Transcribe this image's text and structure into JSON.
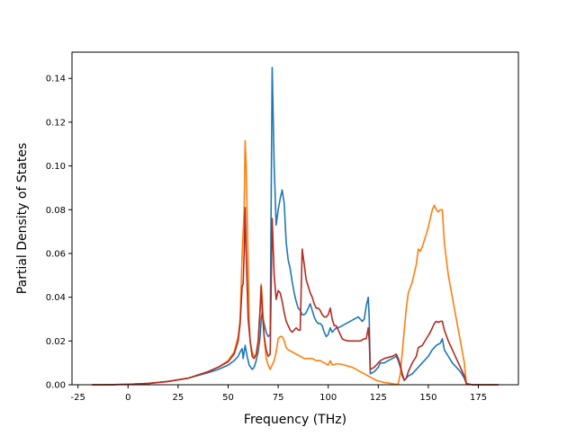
{
  "chart_data": {
    "type": "line",
    "xlabel": "Frequency (THz)",
    "ylabel": "Partial Density of States",
    "xlim": [
      -28,
      195
    ],
    "ylim": [
      0,
      0.152
    ],
    "xticks": [
      -25,
      0,
      25,
      50,
      75,
      100,
      125,
      150,
      175
    ],
    "yticks": [
      0.0,
      0.02,
      0.04,
      0.06,
      0.08,
      0.1,
      0.12,
      0.14
    ],
    "ytick_labels": [
      "0.00",
      "0.02",
      "0.04",
      "0.06",
      "0.08",
      "0.10",
      "0.12",
      "0.14"
    ],
    "grid": false,
    "series": [
      {
        "color": "#1f77b4",
        "points": [
          [
            -18,
            0
          ],
          [
            -10,
            0
          ],
          [
            0,
            0.0002
          ],
          [
            10,
            0.0006
          ],
          [
            20,
            0.0015
          ],
          [
            30,
            0.003
          ],
          [
            40,
            0.0055
          ],
          [
            45,
            0.007
          ],
          [
            50,
            0.009
          ],
          [
            53,
            0.011
          ],
          [
            55,
            0.013
          ],
          [
            56,
            0.015
          ],
          [
            57,
            0.0165
          ],
          [
            57.5,
            0.012
          ],
          [
            58.5,
            0.018
          ],
          [
            59.5,
            0.013
          ],
          [
            60.5,
            0.009
          ],
          [
            62,
            0.007
          ],
          [
            63,
            0.008
          ],
          [
            64,
            0.011
          ],
          [
            65,
            0.015
          ],
          [
            66,
            0.022
          ],
          [
            66.5,
            0.03
          ],
          [
            67,
            0.033
          ],
          [
            68,
            0.028
          ],
          [
            69,
            0.024
          ],
          [
            70,
            0.022
          ],
          [
            71,
            0.023
          ],
          [
            72,
            0.145
          ],
          [
            73,
            0.1
          ],
          [
            74,
            0.073
          ],
          [
            75,
            0.08
          ],
          [
            76,
            0.085
          ],
          [
            77,
            0.089
          ],
          [
            78,
            0.083
          ],
          [
            79,
            0.065
          ],
          [
            80,
            0.057
          ],
          [
            81,
            0.053
          ],
          [
            82,
            0.047
          ],
          [
            83,
            0.042
          ],
          [
            84,
            0.038
          ],
          [
            85,
            0.035
          ],
          [
            86,
            0.034
          ],
          [
            87,
            0.032
          ],
          [
            88,
            0.032
          ],
          [
            89,
            0.033
          ],
          [
            90,
            0.035
          ],
          [
            91,
            0.037
          ],
          [
            92,
            0.034
          ],
          [
            93,
            0.031
          ],
          [
            94,
            0.029
          ],
          [
            95,
            0.028
          ],
          [
            96,
            0.028
          ],
          [
            97,
            0.027
          ],
          [
            98,
            0.024
          ],
          [
            99,
            0.022
          ],
          [
            100,
            0.023
          ],
          [
            101,
            0.026
          ],
          [
            102,
            0.024
          ],
          [
            103,
            0.025
          ],
          [
            104,
            0.026
          ],
          [
            105,
            0.026
          ],
          [
            107,
            0.027
          ],
          [
            109,
            0.028
          ],
          [
            111,
            0.029
          ],
          [
            113,
            0.03
          ],
          [
            115,
            0.031
          ],
          [
            117,
            0.029
          ],
          [
            118,
            0.03
          ],
          [
            119,
            0.036
          ],
          [
            120,
            0.04
          ],
          [
            120.5,
            0.03
          ],
          [
            121,
            0.005
          ],
          [
            123,
            0.006
          ],
          [
            125,
            0.008
          ],
          [
            126,
            0.01
          ],
          [
            128,
            0.01
          ],
          [
            130,
            0.011
          ],
          [
            132,
            0.012
          ],
          [
            134,
            0.013
          ],
          [
            135,
            0.011
          ],
          [
            136,
            0.008
          ],
          [
            137,
            0.004
          ],
          [
            138,
            0.002
          ],
          [
            139,
            0.003
          ],
          [
            140,
            0.004
          ],
          [
            142,
            0.005
          ],
          [
            144,
            0.007
          ],
          [
            146,
            0.009
          ],
          [
            148,
            0.011
          ],
          [
            150,
            0.013
          ],
          [
            152,
            0.016
          ],
          [
            154,
            0.018
          ],
          [
            156,
            0.019
          ],
          [
            157,
            0.021
          ],
          [
            158,
            0.016
          ],
          [
            160,
            0.013
          ],
          [
            162,
            0.01
          ],
          [
            164,
            0.008
          ],
          [
            166,
            0.006
          ],
          [
            168,
            0.003
          ],
          [
            169,
            0.0005
          ],
          [
            172,
            0
          ],
          [
            185,
            0
          ]
        ]
      },
      {
        "color": "#ff7f0e",
        "points": [
          [
            -18,
            0
          ],
          [
            -10,
            0
          ],
          [
            0,
            0.0002
          ],
          [
            10,
            0.0006
          ],
          [
            20,
            0.0015
          ],
          [
            30,
            0.003
          ],
          [
            40,
            0.006
          ],
          [
            45,
            0.008
          ],
          [
            50,
            0.011
          ],
          [
            53,
            0.015
          ],
          [
            55,
            0.022
          ],
          [
            56,
            0.03
          ],
          [
            57,
            0.06
          ],
          [
            58,
            0.08
          ],
          [
            58.5,
            0.1115
          ],
          [
            59,
            0.1
          ],
          [
            60,
            0.055
          ],
          [
            60.5,
            0.03
          ],
          [
            61,
            0.02
          ],
          [
            62,
            0.015
          ],
          [
            63,
            0.013
          ],
          [
            64,
            0.013
          ],
          [
            65,
            0.018
          ],
          [
            66,
            0.035
          ],
          [
            66.5,
            0.046
          ],
          [
            67,
            0.04
          ],
          [
            68,
            0.022
          ],
          [
            69,
            0.012
          ],
          [
            70,
            0.009
          ],
          [
            71,
            0.007
          ],
          [
            72,
            0.009
          ],
          [
            73,
            0.011
          ],
          [
            74,
            0.015
          ],
          [
            75,
            0.021
          ],
          [
            76,
            0.022
          ],
          [
            77,
            0.022
          ],
          [
            78,
            0.02
          ],
          [
            79,
            0.017
          ],
          [
            80,
            0.016
          ],
          [
            82,
            0.015
          ],
          [
            84,
            0.014
          ],
          [
            86,
            0.013
          ],
          [
            88,
            0.012
          ],
          [
            90,
            0.012
          ],
          [
            92,
            0.012
          ],
          [
            94,
            0.011
          ],
          [
            96,
            0.011
          ],
          [
            98,
            0.01
          ],
          [
            100,
            0.009
          ],
          [
            101,
            0.011
          ],
          [
            102,
            0.009
          ],
          [
            104,
            0.0095
          ],
          [
            106,
            0.0095
          ],
          [
            108,
            0.009
          ],
          [
            110,
            0.0085
          ],
          [
            112,
            0.008
          ],
          [
            114,
            0.007
          ],
          [
            116,
            0.006
          ],
          [
            118,
            0.005
          ],
          [
            120,
            0.004
          ],
          [
            122,
            0.003
          ],
          [
            124,
            0.002
          ],
          [
            126,
            0.0015
          ],
          [
            128,
            0.001
          ],
          [
            130,
            0.0008
          ],
          [
            132,
            0.0005
          ],
          [
            134,
            0.0002
          ],
          [
            135,
            0.0005
          ],
          [
            136,
            0.005
          ],
          [
            137,
            0.015
          ],
          [
            138,
            0.025
          ],
          [
            139,
            0.035
          ],
          [
            140,
            0.042
          ],
          [
            142,
            0.047
          ],
          [
            144,
            0.055
          ],
          [
            145,
            0.062
          ],
          [
            146,
            0.061
          ],
          [
            147,
            0.063
          ],
          [
            148,
            0.066
          ],
          [
            150,
            0.072
          ],
          [
            152,
            0.08
          ],
          [
            153,
            0.082
          ],
          [
            154,
            0.08
          ],
          [
            155,
            0.079
          ],
          [
            156,
            0.08
          ],
          [
            157,
            0.08
          ],
          [
            158,
            0.065
          ],
          [
            160,
            0.05
          ],
          [
            162,
            0.04
          ],
          [
            164,
            0.03
          ],
          [
            166,
            0.02
          ],
          [
            168,
            0.01
          ],
          [
            169,
            0.0005
          ],
          [
            172,
            0
          ],
          [
            185,
            0
          ]
        ]
      },
      {
        "color": "#b22c24",
        "points": [
          [
            -18,
            0
          ],
          [
            -10,
            0
          ],
          [
            0,
            0.0002
          ],
          [
            10,
            0.0006
          ],
          [
            20,
            0.0015
          ],
          [
            30,
            0.003
          ],
          [
            40,
            0.006
          ],
          [
            45,
            0.008
          ],
          [
            50,
            0.0105
          ],
          [
            53,
            0.014
          ],
          [
            55,
            0.02
          ],
          [
            56,
            0.028
          ],
          [
            57,
            0.045
          ],
          [
            57.5,
            0.046
          ],
          [
            58,
            0.06
          ],
          [
            58.5,
            0.081
          ],
          [
            59,
            0.06
          ],
          [
            60,
            0.03
          ],
          [
            61,
            0.02
          ],
          [
            62,
            0.013
          ],
          [
            63,
            0.012
          ],
          [
            64,
            0.014
          ],
          [
            65,
            0.02
          ],
          [
            66,
            0.035
          ],
          [
            66.5,
            0.045
          ],
          [
            67,
            0.034
          ],
          [
            68,
            0.022
          ],
          [
            69,
            0.016
          ],
          [
            70,
            0.013
          ],
          [
            71,
            0.014
          ],
          [
            72,
            0.076
          ],
          [
            73,
            0.05
          ],
          [
            74,
            0.039
          ],
          [
            75,
            0.043
          ],
          [
            76,
            0.042
          ],
          [
            77,
            0.038
          ],
          [
            78,
            0.033
          ],
          [
            79,
            0.029
          ],
          [
            80,
            0.027
          ],
          [
            81,
            0.025
          ],
          [
            82,
            0.024
          ],
          [
            83,
            0.025
          ],
          [
            84,
            0.026
          ],
          [
            85,
            0.025
          ],
          [
            86,
            0.025
          ],
          [
            87,
            0.062
          ],
          [
            88,
            0.055
          ],
          [
            89,
            0.048
          ],
          [
            90,
            0.045
          ],
          [
            91,
            0.042
          ],
          [
            92,
            0.04
          ],
          [
            93,
            0.037
          ],
          [
            94,
            0.035
          ],
          [
            95,
            0.035
          ],
          [
            96,
            0.034
          ],
          [
            97,
            0.032
          ],
          [
            98,
            0.031
          ],
          [
            99,
            0.031
          ],
          [
            100,
            0.032
          ],
          [
            101,
            0.035
          ],
          [
            102,
            0.03
          ],
          [
            103,
            0.027
          ],
          [
            104,
            0.027
          ],
          [
            105,
            0.025
          ],
          [
            106,
            0.023
          ],
          [
            107,
            0.021
          ],
          [
            108,
            0.0205
          ],
          [
            110,
            0.02
          ],
          [
            112,
            0.02
          ],
          [
            114,
            0.02
          ],
          [
            116,
            0.02
          ],
          [
            118,
            0.021
          ],
          [
            119,
            0.021
          ],
          [
            120,
            0.026
          ],
          [
            120.5,
            0.02
          ],
          [
            121,
            0.007
          ],
          [
            123,
            0.008
          ],
          [
            125,
            0.01
          ],
          [
            126,
            0.011
          ],
          [
            128,
            0.012
          ],
          [
            130,
            0.0125
          ],
          [
            132,
            0.013
          ],
          [
            134,
            0.014
          ],
          [
            135,
            0.012
          ],
          [
            136,
            0.009
          ],
          [
            137,
            0.005
          ],
          [
            138,
            0.002
          ],
          [
            139,
            0.003
          ],
          [
            140,
            0.006
          ],
          [
            142,
            0.01
          ],
          [
            144,
            0.013
          ],
          [
            145,
            0.017
          ],
          [
            147,
            0.018
          ],
          [
            149,
            0.021
          ],
          [
            151,
            0.024
          ],
          [
            153,
            0.028
          ],
          [
            154,
            0.029
          ],
          [
            155,
            0.0285
          ],
          [
            156,
            0.029
          ],
          [
            157,
            0.029
          ],
          [
            158,
            0.025
          ],
          [
            160,
            0.02
          ],
          [
            162,
            0.016
          ],
          [
            164,
            0.012
          ],
          [
            166,
            0.008
          ],
          [
            168,
            0.004
          ],
          [
            169,
            0.0005
          ],
          [
            172,
            0
          ],
          [
            185,
            0
          ]
        ]
      }
    ]
  }
}
